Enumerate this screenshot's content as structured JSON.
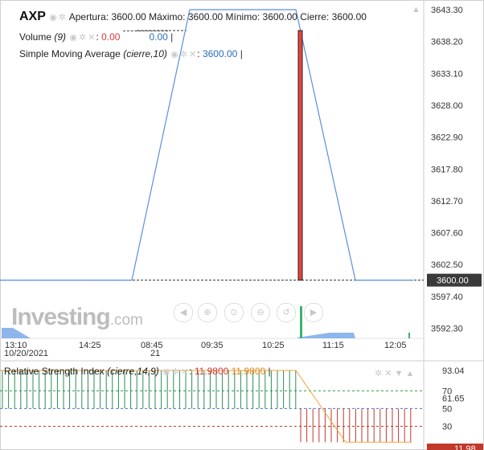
{
  "header": {
    "symbol": "AXP",
    "ohlc": "Apertura: 3600.00 Máximo: 3600.00 Mínimo: 3600.00 Cierre: 3600.00",
    "volume_label": "Volume",
    "volume_param": "(9)",
    "volume_value_1": "0.00",
    "volume_value_2": "0.00",
    "sma_label": "Simple Moving Average",
    "sma_param": "(cierre,10)",
    "sma_value": "3600.00"
  },
  "rsi_header": {
    "label": "Relative Strength Index",
    "param": "(cierre,14,9)",
    "value_1": "11.9800",
    "value_2": "11.9800"
  },
  "watermark": {
    "brand": "Investing",
    "suffix": ".com"
  },
  "toolbar": {
    "icons": [
      "scroll-left-icon",
      "zoom-in-icon",
      "zoom-reset-icon",
      "zoom-out-icon",
      "reset-icon",
      "scroll-right-icon"
    ]
  },
  "colors": {
    "price_line": "#5b8fe0",
    "candle": "#e8443a",
    "volume_fill": "#8eb6ec",
    "rsi_up": "#2e8b57",
    "rsi_down": "#c0392b",
    "rsi_line": "#f0a33a",
    "rsi_level_high": "#2e9e3e",
    "rsi_level_mid": "#3a7bd5",
    "rsi_level_low": "#c0392b"
  },
  "chart_data": [
    {
      "type": "line",
      "series": [
        {
          "name": "Simple Moving Average",
          "x": [
            "13:10",
            "14:25",
            "08:45",
            "09:35",
            "10:25",
            "11:15",
            "12:05"
          ],
          "values": [
            3600.0,
            3600.0,
            3643.3,
            3643.3,
            3643.3,
            3600.0,
            3600.0
          ]
        }
      ],
      "x_tick_labels": [
        "13:10",
        "14:25",
        "08:45",
        "09:35",
        "10:25",
        "11:15",
        "12:05"
      ],
      "x_date_labels": [
        "10/20/2021",
        "21"
      ],
      "y_tick_labels": [
        "3643.30",
        "3638.20",
        "3633.10",
        "3628.00",
        "3622.90",
        "3617.80",
        "3612.70",
        "3607.60",
        "3602.50",
        "3597.40",
        "3592.30"
      ],
      "last_price_label": "3600.00",
      "ylim": [
        3590.0,
        3644.5
      ],
      "grid": false
    },
    {
      "type": "line",
      "series": [
        {
          "name": "Relative Strength Index",
          "values": [
            93.04,
            93.04,
            93.04,
            11.98,
            11.98
          ]
        }
      ],
      "y_tick_labels": [
        "93.04",
        "70",
        "61.65",
        "50",
        "30"
      ],
      "last_value_label": "11.98",
      "ylim": [
        5,
        100
      ],
      "levels": [
        70,
        50,
        30
      ]
    }
  ]
}
